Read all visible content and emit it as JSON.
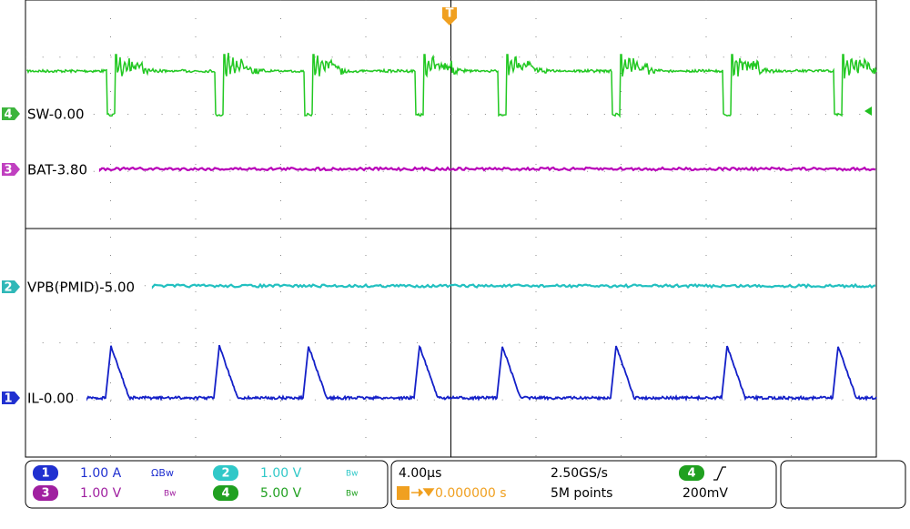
{
  "trigger_marker": "T",
  "channels": [
    {
      "number": "4",
      "label": "SW-0.00"
    },
    {
      "number": "3",
      "label": "BAT-3.80"
    },
    {
      "number": "2",
      "label": "VPB(PMID)-5.00"
    },
    {
      "number": "1",
      "label": "IL-0.00"
    }
  ],
  "settings": [
    {
      "number": "1",
      "scale": "1.00 A",
      "flags": "ΩBw"
    },
    {
      "number": "2",
      "scale": "1.00 V",
      "flags": "Bw"
    },
    {
      "number": "3",
      "scale": "1.00 V",
      "flags": "Bw"
    },
    {
      "number": "4",
      "scale": "5.00 V",
      "flags": "Bw"
    }
  ],
  "timebase": {
    "scale": "4.00µs",
    "sample_rate": "2.50GS/s",
    "position": "0.000000 s",
    "record_length": "5M points"
  },
  "trigger": {
    "channel": "4",
    "level": "200mV"
  }
}
